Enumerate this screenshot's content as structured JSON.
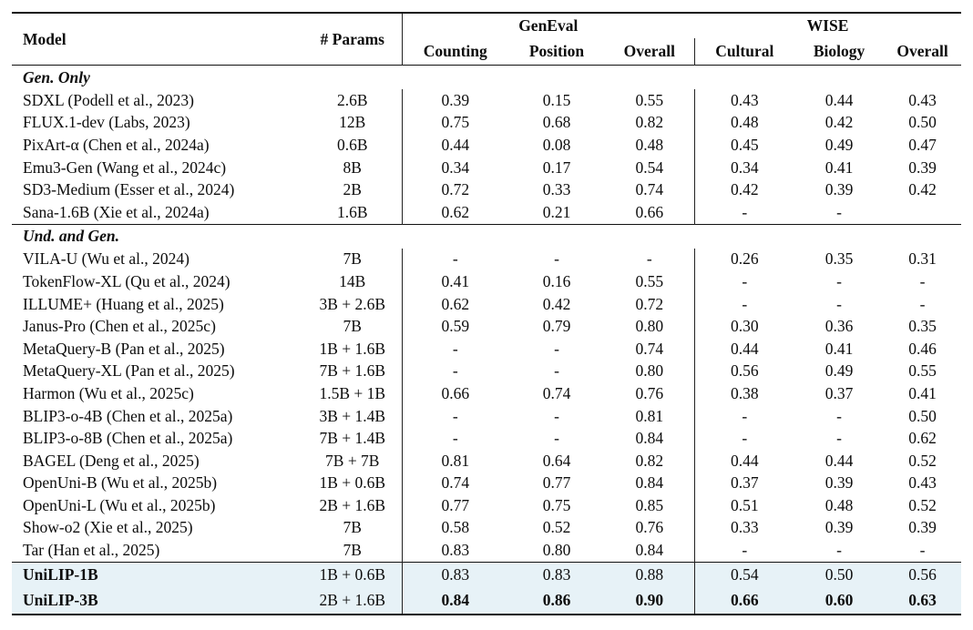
{
  "table": {
    "header": {
      "model": "Model",
      "params": "# Params",
      "groups": [
        {
          "label": "GenEval",
          "cols": [
            "Counting",
            "Position",
            "Overall"
          ]
        },
        {
          "label": "WISE",
          "cols": [
            "Cultural",
            "Biology",
            "Overall"
          ]
        }
      ]
    },
    "sections": [
      {
        "label": "Gen. Only",
        "rows": [
          {
            "model": "SDXL (Podell et al., 2023)",
            "params": "2.6B",
            "values": [
              "0.39",
              "0.15",
              "0.55",
              "0.43",
              "0.44",
              "0.43"
            ]
          },
          {
            "model": "FLUX.1-dev (Labs, 2023)",
            "params": "12B",
            "values": [
              "0.75",
              "0.68",
              "0.82",
              "0.48",
              "0.42",
              "0.50"
            ]
          },
          {
            "model": "PixArt-α (Chen et al., 2024a)",
            "params": "0.6B",
            "values": [
              "0.44",
              "0.08",
              "0.48",
              "0.45",
              "0.49",
              "0.47"
            ]
          },
          {
            "model": "Emu3-Gen (Wang et al., 2024c)",
            "params": "8B",
            "values": [
              "0.34",
              "0.17",
              "0.54",
              "0.34",
              "0.41",
              "0.39"
            ]
          },
          {
            "model": "SD3-Medium (Esser et al., 2024)",
            "params": "2B",
            "values": [
              "0.72",
              "0.33",
              "0.74",
              "0.42",
              "0.39",
              "0.42"
            ]
          },
          {
            "model": "Sana-1.6B (Xie et al., 2024a)",
            "params": "1.6B",
            "values": [
              "0.62",
              "0.21",
              "0.66",
              "-",
              "-",
              ""
            ]
          }
        ]
      },
      {
        "label": "Und. and Gen.",
        "rows": [
          {
            "model": "VILA-U (Wu et al., 2024)",
            "params": "7B",
            "values": [
              "-",
              "-",
              "-",
              "0.26",
              "0.35",
              "0.31"
            ]
          },
          {
            "model": "TokenFlow-XL (Qu et al., 2024)",
            "params": "14B",
            "values": [
              "0.41",
              "0.16",
              "0.55",
              "-",
              "-",
              "-"
            ]
          },
          {
            "model": "ILLUME+ (Huang et al., 2025)",
            "params": "3B + 2.6B",
            "values": [
              "0.62",
              "0.42",
              "0.72",
              "-",
              "-",
              "-"
            ]
          },
          {
            "model": "Janus-Pro (Chen et al., 2025c)",
            "params": "7B",
            "values": [
              "0.59",
              "0.79",
              "0.80",
              "0.30",
              "0.36",
              "0.35"
            ]
          },
          {
            "model": "MetaQuery-B (Pan et al., 2025)",
            "params": "1B + 1.6B",
            "values": [
              "-",
              "-",
              "0.74",
              "0.44",
              "0.41",
              "0.46"
            ]
          },
          {
            "model": "MetaQuery-XL (Pan et al., 2025)",
            "params": "7B + 1.6B",
            "values": [
              "-",
              "-",
              "0.80",
              "0.56",
              "0.49",
              "0.55"
            ]
          },
          {
            "model": "Harmon (Wu et al., 2025c)",
            "params": "1.5B + 1B",
            "values": [
              "0.66",
              "0.74",
              "0.76",
              "0.38",
              "0.37",
              "0.41"
            ]
          },
          {
            "model": "BLIP3-o-4B (Chen et al., 2025a)",
            "params": "3B + 1.4B",
            "values": [
              "-",
              "-",
              "0.81",
              "-",
              "-",
              "0.50"
            ]
          },
          {
            "model": "BLIP3-o-8B (Chen et al., 2025a)",
            "params": "7B + 1.4B",
            "values": [
              "-",
              "-",
              "0.84",
              "-",
              "-",
              "0.62"
            ]
          },
          {
            "model": "BAGEL (Deng et al., 2025)",
            "params": "7B + 7B",
            "values": [
              "0.81",
              "0.64",
              "0.82",
              "0.44",
              "0.44",
              "0.52"
            ]
          },
          {
            "model": "OpenUni-B (Wu et al., 2025b)",
            "params": "1B + 0.6B",
            "values": [
              "0.74",
              "0.77",
              "0.84",
              "0.37",
              "0.39",
              "0.43"
            ]
          },
          {
            "model": "OpenUni-L (Wu et al., 2025b)",
            "params": "2B + 1.6B",
            "values": [
              "0.77",
              "0.75",
              "0.85",
              "0.51",
              "0.48",
              "0.52"
            ]
          },
          {
            "model": "Show-o2 (Xie et al., 2025)",
            "params": "7B",
            "values": [
              "0.58",
              "0.52",
              "0.76",
              "0.33",
              "0.39",
              "0.39"
            ]
          },
          {
            "model": "Tar (Han et al., 2025)",
            "params": "7B",
            "values": [
              "0.83",
              "0.80",
              "0.84",
              "-",
              "-",
              "-"
            ]
          }
        ]
      }
    ],
    "highlight_rows": [
      {
        "model": "UniLIP-1B",
        "params": "1B + 0.6B",
        "values": [
          "0.83",
          "0.83",
          "0.88",
          "0.54",
          "0.50",
          "0.56"
        ],
        "bold_values": false
      },
      {
        "model": "UniLIP-3B",
        "params": "2B + 1.6B",
        "values": [
          "0.84",
          "0.86",
          "0.90",
          "0.66",
          "0.60",
          "0.63"
        ],
        "bold_values": true
      }
    ],
    "highlight_color": "#e7f2f7",
    "rule_color": "#111111"
  }
}
